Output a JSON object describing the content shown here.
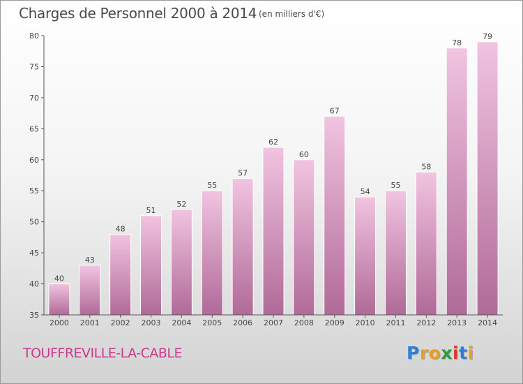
{
  "title": "Charges de Personnel 2000 à 2014",
  "subtitle": "(en milliers d'€)",
  "commune": "TOUFFREVILLE-LA-CABLE",
  "logo": {
    "letters": [
      "P",
      "r",
      "o",
      "x",
      "i",
      "t",
      "i"
    ],
    "colors": [
      "#2f7fd6",
      "#e8a020",
      "#e8a020",
      "#2f9e3a",
      "#d93c2f",
      "#2f7fd6",
      "#e8a020"
    ]
  },
  "colors": {
    "bar_light": "#f1c4e0",
    "bar_dark": "#b06a98",
    "title": "#4a4a4a",
    "commune": "#cc3a8c"
  },
  "chart_data": {
    "type": "bar",
    "title": "Charges de Personnel 2000 à 2014",
    "xlabel": "",
    "ylabel": "",
    "categories": [
      "2000",
      "2001",
      "2002",
      "2003",
      "2004",
      "2005",
      "2006",
      "2007",
      "2008",
      "2009",
      "2010",
      "2011",
      "2012",
      "2013",
      "2014"
    ],
    "values": [
      40,
      43,
      48,
      51,
      52,
      55,
      57,
      62,
      60,
      67,
      54,
      55,
      58,
      78,
      79
    ],
    "ylim": [
      35,
      80
    ],
    "yticks": [
      35,
      40,
      45,
      50,
      55,
      60,
      65,
      70,
      75,
      80
    ],
    "grid": false,
    "legend": "none"
  }
}
